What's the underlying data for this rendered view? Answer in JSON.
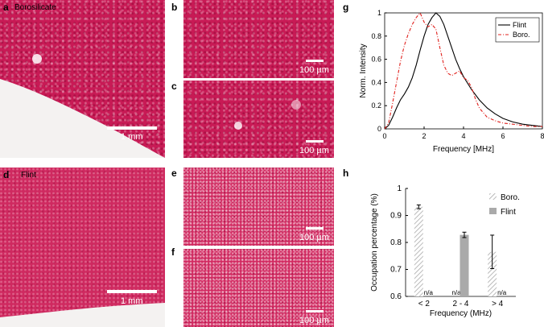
{
  "panels": {
    "a": {
      "letter": "a",
      "label": "Borosilicate",
      "scale": "1 mm"
    },
    "b": {
      "letter": "b",
      "scale": "100 µm"
    },
    "c": {
      "letter": "c",
      "scale": "100 µm"
    },
    "d": {
      "letter": "d",
      "label": "Flint",
      "scale": "1 mm"
    },
    "e": {
      "letter": "e",
      "scale": "100 µm"
    },
    "f": {
      "letter": "f",
      "scale": "100 µm"
    },
    "g": {
      "letter": "g"
    },
    "h": {
      "letter": "h"
    }
  },
  "colors": {
    "stain": "#c81a55",
    "flint_line": "#000000",
    "boro_line": "#e0201c",
    "flint_bar": "#aaaaaa"
  },
  "chart_data": [
    {
      "id": "g",
      "type": "line",
      "xlabel": "Frequency [MHz]",
      "ylabel": "Norm. Intensity",
      "xlim": [
        0,
        8
      ],
      "ylim": [
        0,
        1
      ],
      "xticks": [
        "0",
        "2",
        "4",
        "6",
        "8"
      ],
      "yticks": [
        "0",
        "0.2",
        "0.4",
        "0.6",
        "0.8",
        "1"
      ],
      "legend": "top-right",
      "series": [
        {
          "name": "Flint",
          "style": "solid",
          "x": [
            0,
            0.2,
            0.4,
            0.6,
            0.8,
            1.0,
            1.2,
            1.4,
            1.6,
            1.8,
            2.0,
            2.2,
            2.4,
            2.6,
            2.8,
            3.0,
            3.2,
            3.4,
            3.6,
            3.8,
            4.0,
            4.4,
            4.8,
            5.2,
            5.6,
            6.0,
            6.5,
            7.0,
            7.5,
            8.0
          ],
          "y": [
            0,
            0.03,
            0.1,
            0.18,
            0.25,
            0.3,
            0.36,
            0.44,
            0.55,
            0.68,
            0.8,
            0.9,
            0.96,
            1.0,
            0.97,
            0.9,
            0.8,
            0.7,
            0.6,
            0.52,
            0.45,
            0.34,
            0.25,
            0.18,
            0.13,
            0.09,
            0.06,
            0.04,
            0.03,
            0.02
          ]
        },
        {
          "name": "Boro.",
          "style": "dashdot",
          "x": [
            0,
            0.2,
            0.4,
            0.6,
            0.8,
            1.0,
            1.2,
            1.4,
            1.6,
            1.8,
            2.0,
            2.2,
            2.4,
            2.6,
            2.8,
            3.0,
            3.2,
            3.4,
            3.6,
            3.8,
            4.0,
            4.2,
            4.4,
            4.6,
            4.8,
            5.2,
            5.6,
            6.0,
            6.5,
            7.0,
            7.5,
            8.0
          ],
          "y": [
            0,
            0.05,
            0.22,
            0.4,
            0.58,
            0.72,
            0.82,
            0.9,
            0.96,
            1.0,
            0.92,
            0.88,
            0.9,
            0.86,
            0.7,
            0.55,
            0.48,
            0.46,
            0.48,
            0.5,
            0.44,
            0.42,
            0.36,
            0.26,
            0.18,
            0.1,
            0.07,
            0.05,
            0.04,
            0.03,
            0.02,
            0.02
          ]
        }
      ]
    },
    {
      "id": "h",
      "type": "bar",
      "xlabel": "Frequency (MHz)",
      "ylabel": "Occupation percentage (%)",
      "ylim": [
        0.6,
        1
      ],
      "yticks": [
        "0.6",
        "0.7",
        "0.8",
        "0.9",
        "1"
      ],
      "categories": [
        "< 2",
        "2 - 4",
        "> 4"
      ],
      "legend": "top-right",
      "series": [
        {
          "name": "Boro.",
          "values": [
            0.932,
            null,
            0.765
          ],
          "errors": [
            0.007,
            null,
            0.062
          ]
        },
        {
          "name": "Flint",
          "values": [
            null,
            0.828,
            null
          ],
          "errors": [
            null,
            0.01,
            null
          ]
        }
      ],
      "na_label": "n/a"
    }
  ]
}
